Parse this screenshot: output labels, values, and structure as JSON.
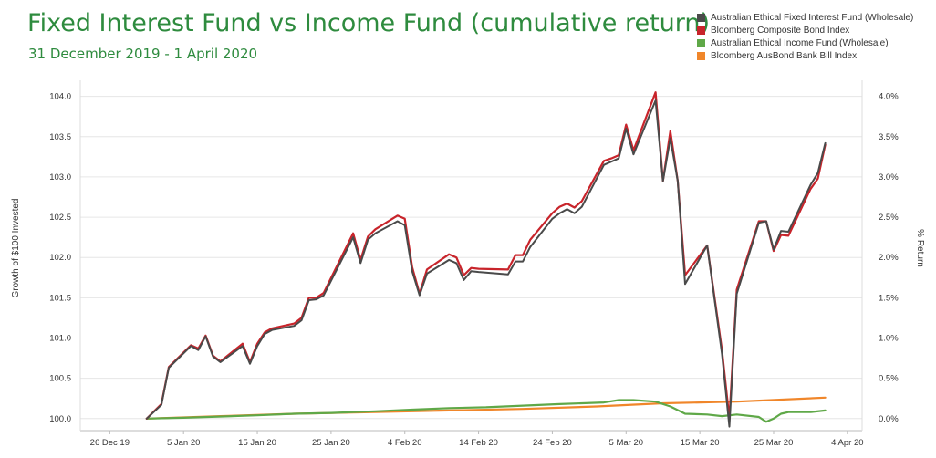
{
  "title": "Fixed Interest Fund vs Income Fund (cumulative return)",
  "subtitle": "31 December 2019 - 1 April 2020",
  "chart_data": {
    "type": "line",
    "xlabel": "",
    "ylabel": "Growth of $100 Invested",
    "y2label": "% Return",
    "ylim": [
      99.85,
      104.2
    ],
    "y2lim": [
      -0.15,
      4.2
    ],
    "x_ticks": [
      "26 Dec 19",
      "5 Jan 20",
      "15 Jan 20",
      "25 Jan 20",
      "4 Feb 20",
      "14 Feb 20",
      "24 Feb 20",
      "5 Mar 20",
      "15 Mar 20",
      "25 Mar 20",
      "4 Apr 20"
    ],
    "y_ticks": [
      "100.0",
      "100.5",
      "101.0",
      "101.5",
      "102.0",
      "102.5",
      "103.0",
      "103.5",
      "104.0"
    ],
    "y2_ticks": [
      "0.0%",
      "0.5%",
      "1.0%",
      "1.5%",
      "2.0%",
      "2.5%",
      "3.0%",
      "3.5%",
      "4.0%"
    ],
    "grid": true,
    "legend_position": "top-right",
    "series": [
      {
        "name": "Australian Ethical Fixed Interest Fund (Wholesale)",
        "color": "#4a4a4a",
        "x": [
          "2019-12-31",
          "2020-01-02",
          "2020-01-03",
          "2020-01-06",
          "2020-01-07",
          "2020-01-08",
          "2020-01-09",
          "2020-01-10",
          "2020-01-13",
          "2020-01-14",
          "2020-01-15",
          "2020-01-16",
          "2020-01-17",
          "2020-01-20",
          "2020-01-21",
          "2020-01-22",
          "2020-01-23",
          "2020-01-24",
          "2020-01-28",
          "2020-01-29",
          "2020-01-30",
          "2020-01-31",
          "2020-02-03",
          "2020-02-04",
          "2020-02-05",
          "2020-02-06",
          "2020-02-07",
          "2020-02-10",
          "2020-02-11",
          "2020-02-12",
          "2020-02-13",
          "2020-02-14",
          "2020-02-18",
          "2020-02-19",
          "2020-02-20",
          "2020-02-21",
          "2020-02-24",
          "2020-02-25",
          "2020-02-26",
          "2020-02-27",
          "2020-02-28",
          "2020-03-02",
          "2020-03-03",
          "2020-03-04",
          "2020-03-05",
          "2020-03-06",
          "2020-03-09",
          "2020-03-10",
          "2020-03-11",
          "2020-03-12",
          "2020-03-13",
          "2020-03-16",
          "2020-03-18",
          "2020-03-19",
          "2020-03-20",
          "2020-03-23",
          "2020-03-24",
          "2020-03-25",
          "2020-03-26",
          "2020-03-27",
          "2020-03-30",
          "2020-03-31",
          "2020-04-01"
        ],
        "values": [
          100.0,
          100.17,
          100.63,
          100.9,
          100.85,
          101.02,
          100.77,
          100.7,
          100.9,
          100.68,
          100.9,
          101.05,
          101.1,
          101.15,
          101.22,
          101.47,
          101.48,
          101.53,
          102.25,
          101.93,
          102.22,
          102.3,
          102.45,
          102.4,
          101.83,
          101.53,
          101.8,
          101.97,
          101.93,
          101.72,
          101.83,
          101.82,
          101.79,
          101.95,
          101.95,
          102.13,
          102.48,
          102.55,
          102.6,
          102.55,
          102.63,
          103.15,
          103.19,
          103.23,
          103.6,
          103.28,
          103.95,
          102.95,
          103.48,
          102.95,
          101.67,
          102.15,
          100.8,
          99.9,
          101.55,
          102.43,
          102.45,
          102.1,
          102.33,
          102.32,
          102.9,
          103.05,
          103.42
        ]
      },
      {
        "name": "Bloomberg Composite Bond Index",
        "color": "#c8242b",
        "x": [
          "2019-12-31",
          "2020-01-02",
          "2020-01-03",
          "2020-01-06",
          "2020-01-07",
          "2020-01-08",
          "2020-01-09",
          "2020-01-10",
          "2020-01-13",
          "2020-01-14",
          "2020-01-15",
          "2020-01-16",
          "2020-01-17",
          "2020-01-20",
          "2020-01-21",
          "2020-01-22",
          "2020-01-23",
          "2020-01-24",
          "2020-01-28",
          "2020-01-29",
          "2020-01-30",
          "2020-01-31",
          "2020-02-03",
          "2020-02-04",
          "2020-02-05",
          "2020-02-06",
          "2020-02-07",
          "2020-02-10",
          "2020-02-11",
          "2020-02-12",
          "2020-02-13",
          "2020-02-14",
          "2020-02-18",
          "2020-02-19",
          "2020-02-20",
          "2020-02-21",
          "2020-02-24",
          "2020-02-25",
          "2020-02-26",
          "2020-02-27",
          "2020-02-28",
          "2020-03-02",
          "2020-03-03",
          "2020-03-04",
          "2020-03-05",
          "2020-03-06",
          "2020-03-09",
          "2020-03-10",
          "2020-03-11",
          "2020-03-12",
          "2020-03-13",
          "2020-03-16",
          "2020-03-18",
          "2020-03-19",
          "2020-03-20",
          "2020-03-23",
          "2020-03-24",
          "2020-03-25",
          "2020-03-26",
          "2020-03-27",
          "2020-03-30",
          "2020-03-31",
          "2020-04-01"
        ],
        "values": [
          100.0,
          100.18,
          100.64,
          100.91,
          100.87,
          101.03,
          100.78,
          100.71,
          100.93,
          100.7,
          100.93,
          101.07,
          101.12,
          101.18,
          101.25,
          101.5,
          101.5,
          101.56,
          102.3,
          101.97,
          102.26,
          102.35,
          102.52,
          102.48,
          101.88,
          101.55,
          101.85,
          102.04,
          102.0,
          101.78,
          101.87,
          101.86,
          101.85,
          102.03,
          102.03,
          102.22,
          102.55,
          102.63,
          102.67,
          102.62,
          102.7,
          103.2,
          103.23,
          103.27,
          103.65,
          103.33,
          104.05,
          102.95,
          103.57,
          102.95,
          101.78,
          102.15,
          100.85,
          100.0,
          101.6,
          102.45,
          102.45,
          102.08,
          102.28,
          102.27,
          102.85,
          102.98,
          103.4
        ]
      },
      {
        "name": "Australian Ethical Income Fund (Wholesale)",
        "color": "#5fa848",
        "x": [
          "2019-12-31",
          "2020-01-05",
          "2020-01-15",
          "2020-01-20",
          "2020-01-25",
          "2020-01-31",
          "2020-02-05",
          "2020-02-10",
          "2020-02-15",
          "2020-02-20",
          "2020-02-25",
          "2020-03-02",
          "2020-03-04",
          "2020-03-06",
          "2020-03-09",
          "2020-03-11",
          "2020-03-13",
          "2020-03-16",
          "2020-03-18",
          "2020-03-20",
          "2020-03-23",
          "2020-03-24",
          "2020-03-25",
          "2020-03-26",
          "2020-03-27",
          "2020-03-30",
          "2020-04-01"
        ],
        "values": [
          100.0,
          100.01,
          100.04,
          100.06,
          100.07,
          100.09,
          100.11,
          100.13,
          100.14,
          100.16,
          100.18,
          100.2,
          100.23,
          100.23,
          100.21,
          100.15,
          100.06,
          100.05,
          100.03,
          100.05,
          100.02,
          99.96,
          100.0,
          100.06,
          100.08,
          100.08,
          100.1
        ]
      },
      {
        "name": "Bloomberg AusBond Bank Bill Index",
        "color": "#f0862a",
        "x": [
          "2019-12-31",
          "2020-01-10",
          "2020-01-20",
          "2020-01-31",
          "2020-02-10",
          "2020-02-20",
          "2020-03-01",
          "2020-03-10",
          "2020-03-20",
          "2020-04-01"
        ],
        "values": [
          100.0,
          100.03,
          100.06,
          100.08,
          100.1,
          100.12,
          100.15,
          100.19,
          100.21,
          100.26
        ]
      }
    ]
  }
}
